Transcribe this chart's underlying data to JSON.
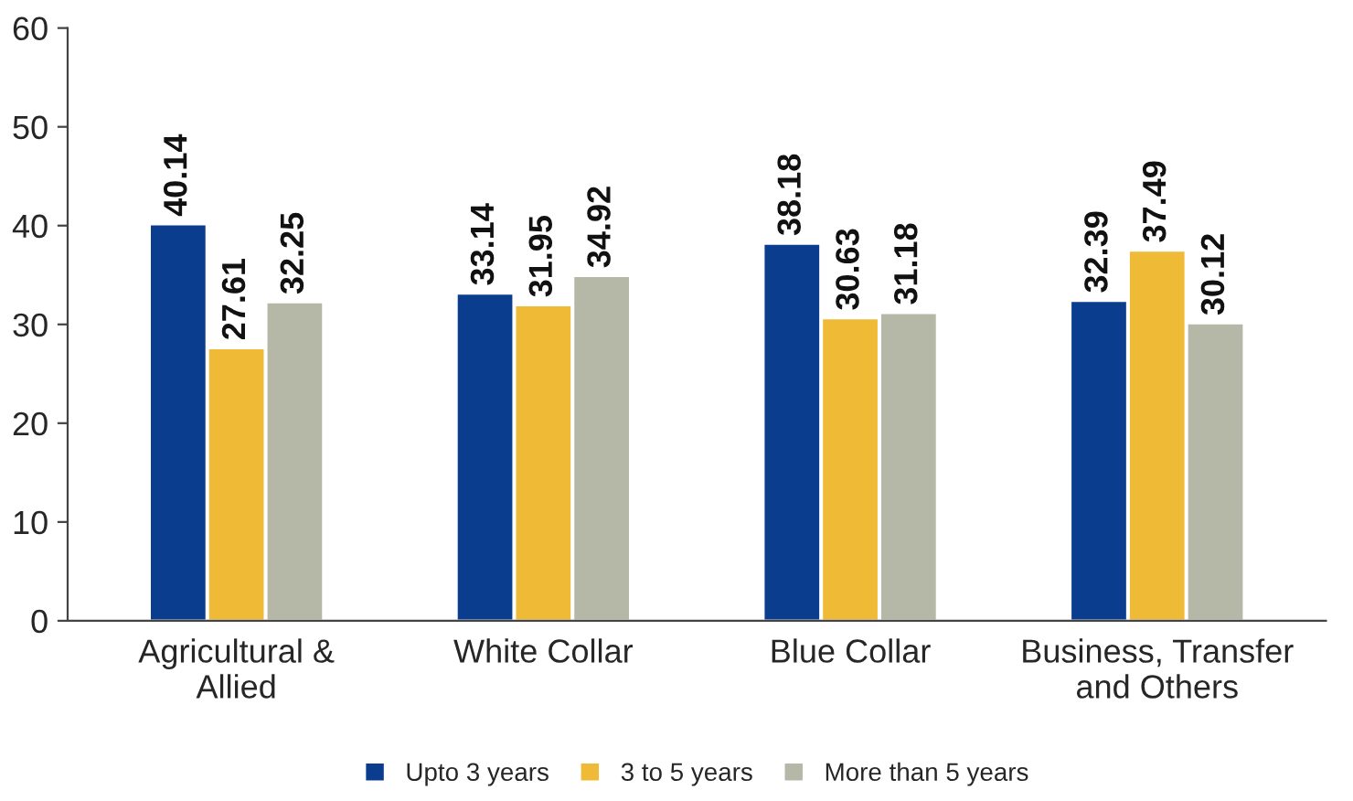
{
  "chart_data": {
    "type": "bar",
    "categories": [
      "Agricultural &\nAllied",
      "White Collar",
      "Blue Collar",
      "Business, Transfer\nand Others"
    ],
    "series": [
      {
        "name": "Upto 3 years",
        "color": "#0b3d8e",
        "values": [
          40.14,
          33.14,
          38.18,
          32.39
        ]
      },
      {
        "name": "3 to 5 years",
        "color": "#efba36",
        "values": [
          27.61,
          31.95,
          30.63,
          37.49
        ]
      },
      {
        "name": "More than 5 years",
        "color": "#b5b8a7",
        "values": [
          32.25,
          34.92,
          31.18,
          30.12
        ]
      }
    ],
    "ylim": [
      0,
      60
    ],
    "yticks": [
      0,
      10,
      20,
      30,
      40,
      50,
      60
    ],
    "data_labels": true,
    "grid": false,
    "legend": "bottom"
  }
}
